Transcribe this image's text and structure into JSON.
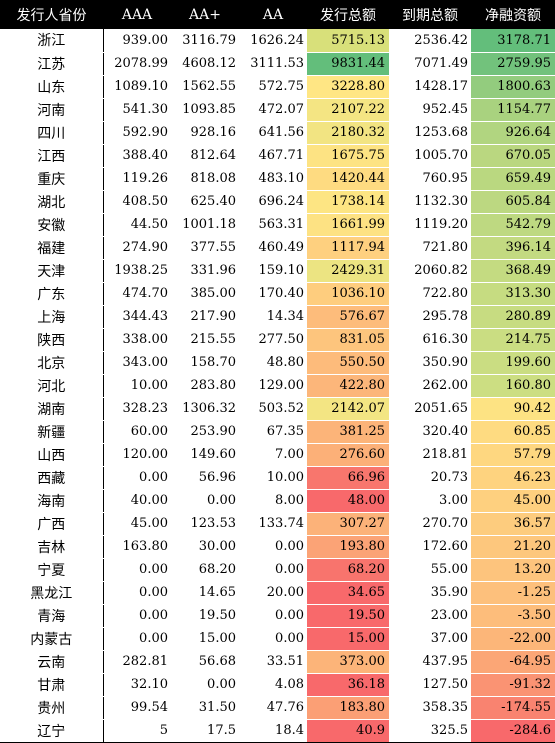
{
  "table": {
    "headers": [
      "发行人省份",
      "AAA",
      "AA+",
      "AA",
      "发行总额",
      "到期总额",
      "净融资额"
    ],
    "rows": [
      {
        "province": "浙江",
        "aaa": "939.00",
        "aa_plus": "3116.79",
        "aa": "1626.24",
        "issued": "5715.13",
        "matured": "2536.42",
        "net": "3178.71",
        "issued_color": "#d8e07a",
        "net_color": "#63be7b"
      },
      {
        "province": "江苏",
        "aaa": "2078.99",
        "aa_plus": "4608.12",
        "aa": "3111.53",
        "issued": "9831.44",
        "matured": "7071.49",
        "net": "2759.95",
        "issued_color": "#63be7b",
        "net_color": "#72c27c"
      },
      {
        "province": "山东",
        "aaa": "1089.10",
        "aa_plus": "1562.55",
        "aa": "572.75",
        "issued": "3228.80",
        "matured": "1428.17",
        "net": "1800.63",
        "issued_color": "#ffe684",
        "net_color": "#93cc7e"
      },
      {
        "province": "河南",
        "aaa": "541.30",
        "aa_plus": "1093.85",
        "aa": "472.07",
        "issued": "2107.22",
        "matured": "952.45",
        "net": "1154.77",
        "issued_color": "#f4e583",
        "net_color": "#a9d27f"
      },
      {
        "province": "四川",
        "aaa": "592.90",
        "aa_plus": "928.16",
        "aa": "641.56",
        "issued": "2180.32",
        "matured": "1253.68",
        "net": "926.64",
        "issued_color": "#f2e482",
        "net_color": "#b1d580"
      },
      {
        "province": "江西",
        "aaa": "388.40",
        "aa_plus": "812.64",
        "aa": "467.71",
        "issued": "1675.75",
        "matured": "1005.70",
        "net": "670.05",
        "issued_color": "#fde383",
        "net_color": "#bad780"
      },
      {
        "province": "重庆",
        "aaa": "119.26",
        "aa_plus": "818.08",
        "aa": "483.10",
        "issued": "1420.44",
        "matured": "760.95",
        "net": "659.49",
        "issued_color": "#fedb81",
        "net_color": "#bad880"
      },
      {
        "province": "湖北",
        "aaa": "408.50",
        "aa_plus": "625.40",
        "aa": "696.24",
        "issued": "1738.14",
        "matured": "1132.30",
        "net": "605.84",
        "issued_color": "#fde583",
        "net_color": "#bcd881"
      },
      {
        "province": "安徽",
        "aaa": "44.50",
        "aa_plus": "1001.18",
        "aa": "563.31",
        "issued": "1661.99",
        "matured": "1119.20",
        "net": "542.79",
        "issued_color": "#fde283",
        "net_color": "#bed981"
      },
      {
        "province": "福建",
        "aaa": "274.90",
        "aa_plus": "377.55",
        "aa": "460.49",
        "issued": "1117.94",
        "matured": "721.80",
        "net": "396.14",
        "issued_color": "#fed07f",
        "net_color": "#c3da81"
      },
      {
        "province": "天津",
        "aaa": "1938.25",
        "aa_plus": "331.96",
        "aa": "159.10",
        "issued": "2429.31",
        "matured": "2060.82",
        "net": "368.49",
        "issued_color": "#ece482",
        "net_color": "#c4db81"
      },
      {
        "province": "广东",
        "aaa": "474.70",
        "aa_plus": "385.00",
        "aa": "170.40",
        "issued": "1036.10",
        "matured": "722.80",
        "net": "313.30",
        "issued_color": "#fecd7e",
        "net_color": "#c6dc81"
      },
      {
        "province": "上海",
        "aaa": "344.43",
        "aa_plus": "217.90",
        "aa": "14.34",
        "issued": "576.67",
        "matured": "295.78",
        "net": "280.89",
        "issued_color": "#fdbc7b",
        "net_color": "#c7dc81"
      },
      {
        "province": "陕西",
        "aaa": "338.00",
        "aa_plus": "215.55",
        "aa": "277.50",
        "issued": "831.05",
        "matured": "616.30",
        "net": "214.75",
        "issued_color": "#fdc57d",
        "net_color": "#cadd82"
      },
      {
        "province": "北京",
        "aaa": "343.00",
        "aa_plus": "158.70",
        "aa": "48.80",
        "issued": "550.50",
        "matured": "350.90",
        "net": "199.60",
        "issued_color": "#fdbb7b",
        "net_color": "#cadd82"
      },
      {
        "province": "河北",
        "aaa": "10.00",
        "aa_plus": "283.80",
        "aa": "129.00",
        "issued": "422.80",
        "matured": "262.00",
        "net": "160.80",
        "issued_color": "#fcb67a",
        "net_color": "#ccde82"
      },
      {
        "province": "湖南",
        "aaa": "328.23",
        "aa_plus": "1306.32",
        "aa": "503.52",
        "issued": "2142.07",
        "matured": "2051.65",
        "net": "90.42",
        "issued_color": "#f3e583",
        "net_color": "#fde383"
      },
      {
        "province": "新疆",
        "aaa": "60.00",
        "aa_plus": "253.90",
        "aa": "67.35",
        "issued": "381.25",
        "matured": "320.40",
        "net": "60.85",
        "issued_color": "#fcb479",
        "net_color": "#fedb81"
      },
      {
        "province": "山西",
        "aaa": "120.00",
        "aa_plus": "149.60",
        "aa": "7.00",
        "issued": "276.60",
        "matured": "218.81",
        "net": "57.79",
        "issued_color": "#fcb078",
        "net_color": "#fed780"
      },
      {
        "province": "西藏",
        "aaa": "0.00",
        "aa_plus": "56.96",
        "aa": "10.00",
        "issued": "66.96",
        "matured": "20.73",
        "net": "46.23",
        "issued_color": "#f8766d",
        "net_color": "#fed37f"
      },
      {
        "province": "海南",
        "aaa": "40.00",
        "aa_plus": "0.00",
        "aa": "8.00",
        "issued": "48.00",
        "matured": "3.00",
        "net": "45.00",
        "issued_color": "#f8696b",
        "net_color": "#fed07f"
      },
      {
        "province": "广西",
        "aaa": "45.00",
        "aa_plus": "123.53",
        "aa": "133.74",
        "issued": "307.27",
        "matured": "270.70",
        "net": "36.57",
        "issued_color": "#fcb279",
        "net_color": "#fdcc7e"
      },
      {
        "province": "吉林",
        "aaa": "163.80",
        "aa_plus": "30.00",
        "aa": "0.00",
        "issued": "193.80",
        "matured": "172.60",
        "net": "21.20",
        "issued_color": "#fba376",
        "net_color": "#fdc77d"
      },
      {
        "province": "宁夏",
        "aaa": "0.00",
        "aa_plus": "68.20",
        "aa": "0.00",
        "issued": "68.20",
        "matured": "55.00",
        "net": "13.20",
        "issued_color": "#f8746d",
        "net_color": "#fdc47d"
      },
      {
        "province": "黑龙江",
        "aaa": "0.00",
        "aa_plus": "14.65",
        "aa": "20.00",
        "issued": "34.65",
        "matured": "35.90",
        "net": "-1.25",
        "issued_color": "#f8696b",
        "net_color": "#fdc07c"
      },
      {
        "province": "青海",
        "aaa": "0.00",
        "aa_plus": "19.50",
        "aa": "0.00",
        "issued": "19.50",
        "matured": "23.00",
        "net": "-3.50",
        "issued_color": "#f8696b",
        "net_color": "#fdbd7b"
      },
      {
        "province": "内蒙古",
        "aaa": "0.00",
        "aa_plus": "15.00",
        "aa": "0.00",
        "issued": "15.00",
        "matured": "37.00",
        "net": "-22.00",
        "issued_color": "#f8696b",
        "net_color": "#fcb679"
      },
      {
        "province": "云南",
        "aaa": "282.81",
        "aa_plus": "56.68",
        "aa": "33.51",
        "issued": "373.00",
        "matured": "437.95",
        "net": "-64.95",
        "issued_color": "#fcb479",
        "net_color": "#fba676"
      },
      {
        "province": "甘肃",
        "aaa": "32.10",
        "aa_plus": "0.00",
        "aa": "4.08",
        "issued": "36.18",
        "matured": "127.50",
        "net": "-91.32",
        "issued_color": "#f8696b",
        "net_color": "#fa9373"
      },
      {
        "province": "贵州",
        "aaa": "99.54",
        "aa_plus": "31.50",
        "aa": "47.76",
        "issued": "183.80",
        "matured": "358.35",
        "net": "-174.55",
        "issued_color": "#fb9f75",
        "net_color": "#f98370"
      },
      {
        "province": "辽宁",
        "aaa": "5",
        "aa_plus": "17.5",
        "aa": "18.4",
        "issued": "40.9",
        "matured": "325.5",
        "net": "-284.6",
        "issued_color": "#f8696b",
        "net_color": "#f8696b"
      }
    ]
  }
}
